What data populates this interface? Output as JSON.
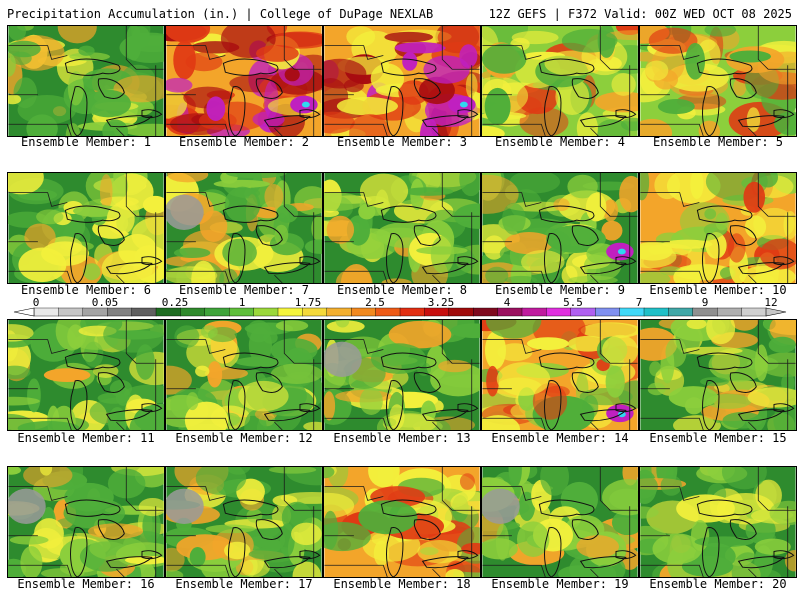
{
  "header": {
    "left_title": "Precipitation Accumulation (in.) | College of DuPage NEXLAB",
    "right_title": "12Z GEFS | F372 Valid: 00Z WED OCT 08 2025"
  },
  "members": [
    {
      "label": "Ensemble Member: 1",
      "dominant": "green"
    },
    {
      "label": "Ensemble Member: 2",
      "dominant": "red"
    },
    {
      "label": "Ensemble Member: 3",
      "dominant": "red"
    },
    {
      "label": "Ensemble Member: 4",
      "dominant": "yellow"
    },
    {
      "label": "Ensemble Member: 5",
      "dominant": "yellow"
    },
    {
      "label": "Ensemble Member: 6",
      "dominant": "green"
    },
    {
      "label": "Ensemble Member: 7",
      "dominant": "green"
    },
    {
      "label": "Ensemble Member: 8",
      "dominant": "green"
    },
    {
      "label": "Ensemble Member: 9",
      "dominant": "green"
    },
    {
      "label": "Ensemble Member: 10",
      "dominant": "orange"
    },
    {
      "label": "Ensemble Member: 11",
      "dominant": "green"
    },
    {
      "label": "Ensemble Member: 12",
      "dominant": "green"
    },
    {
      "label": "Ensemble Member: 13",
      "dominant": "green"
    },
    {
      "label": "Ensemble Member: 14",
      "dominant": "orange"
    },
    {
      "label": "Ensemble Member: 15",
      "dominant": "green"
    },
    {
      "label": "Ensemble Member: 16",
      "dominant": "green"
    },
    {
      "label": "Ensemble Member: 17",
      "dominant": "green"
    },
    {
      "label": "Ensemble Member: 18",
      "dominant": "orange"
    },
    {
      "label": "Ensemble Member: 19",
      "dominant": "green"
    },
    {
      "label": "Ensemble Member: 20",
      "dominant": "green"
    }
  ],
  "colorbar": {
    "units": "in.",
    "tick_labels": [
      "0",
      "0.05",
      "0.25",
      "1",
      "1.75",
      "2.5",
      "3.25",
      "4",
      "5.5",
      "7",
      "9",
      "12"
    ],
    "colors": [
      "#e8e8e8",
      "#c6c6c6",
      "#a4a4a4",
      "#828282",
      "#606060",
      "#1f6d22",
      "#2f8a2c",
      "#3fa43a",
      "#5fbf3a",
      "#9bd83a",
      "#f5f53c",
      "#f5d93a",
      "#f4b030",
      "#f2891f",
      "#ee5a16",
      "#e22e12",
      "#c80f0f",
      "#a00b0b",
      "#7f0a1e",
      "#9b1060",
      "#c01b9f",
      "#e030df",
      "#b060f0",
      "#8090f0",
      "#40d8f8",
      "#20c0c8",
      "#40a8a8",
      "#909090",
      "#b0b0b0",
      "#d0d0d0"
    ]
  },
  "palette": {
    "green_dark": "#2e8b2e",
    "green_mid": "#4fae3a",
    "green_light": "#8ccf3c",
    "yellow": "#f3f03c",
    "orange": "#f3a52a",
    "red": "#e03a14",
    "dark_red": "#a80c10",
    "magenta": "#c020c0",
    "gray": "#9a9a9a",
    "cyan": "#30d8f0"
  }
}
